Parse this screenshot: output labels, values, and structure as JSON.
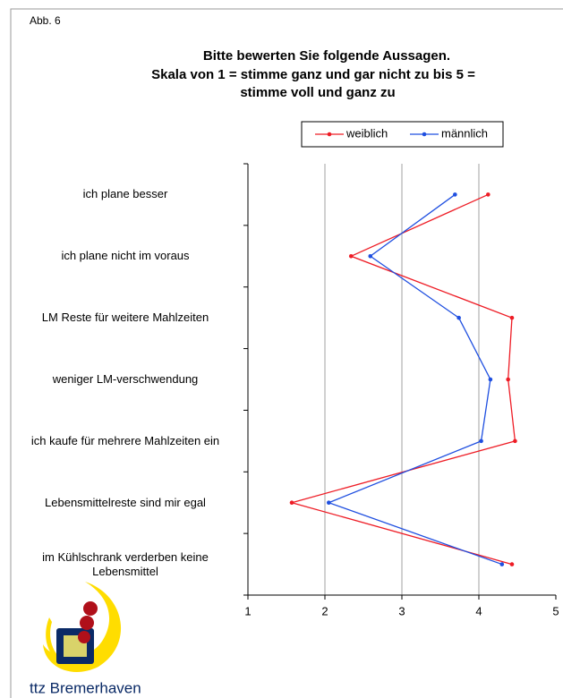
{
  "header": {
    "label": "Abb. 6"
  },
  "chart_data": {
    "type": "line",
    "orientation": "horizontal",
    "title": [
      "Bitte bewerten Sie folgende Aussagen.",
      "Skala von 1 = stimme ganz und gar nicht zu bis 5 =",
      "stimme voll und ganz zu"
    ],
    "categories": [
      "ich plane besser",
      "ich plane nicht im voraus",
      "LM Reste für weitere Mahlzeiten",
      "weniger LM-verschwendung",
      "ich kaufe für mehrere Mahlzeiten ein",
      "Lebensmittelreste sind mir egal",
      "im Kühlschrank verderben keine Lebensmittel"
    ],
    "series": [
      {
        "name": "weiblich",
        "color": "#ee1c25",
        "values": [
          4.12,
          2.34,
          4.43,
          4.38,
          4.47,
          1.57,
          4.43
        ]
      },
      {
        "name": "männlich",
        "color": "#1f4fe0",
        "values": [
          3.69,
          2.59,
          3.74,
          4.15,
          4.03,
          2.05,
          4.3
        ]
      }
    ],
    "xlim": [
      1,
      5
    ],
    "xticks": [
      1,
      2,
      3,
      4,
      5
    ],
    "grid": true,
    "legend": "top"
  },
  "footer": {
    "logo_text": "ttz Bremerhaven"
  }
}
